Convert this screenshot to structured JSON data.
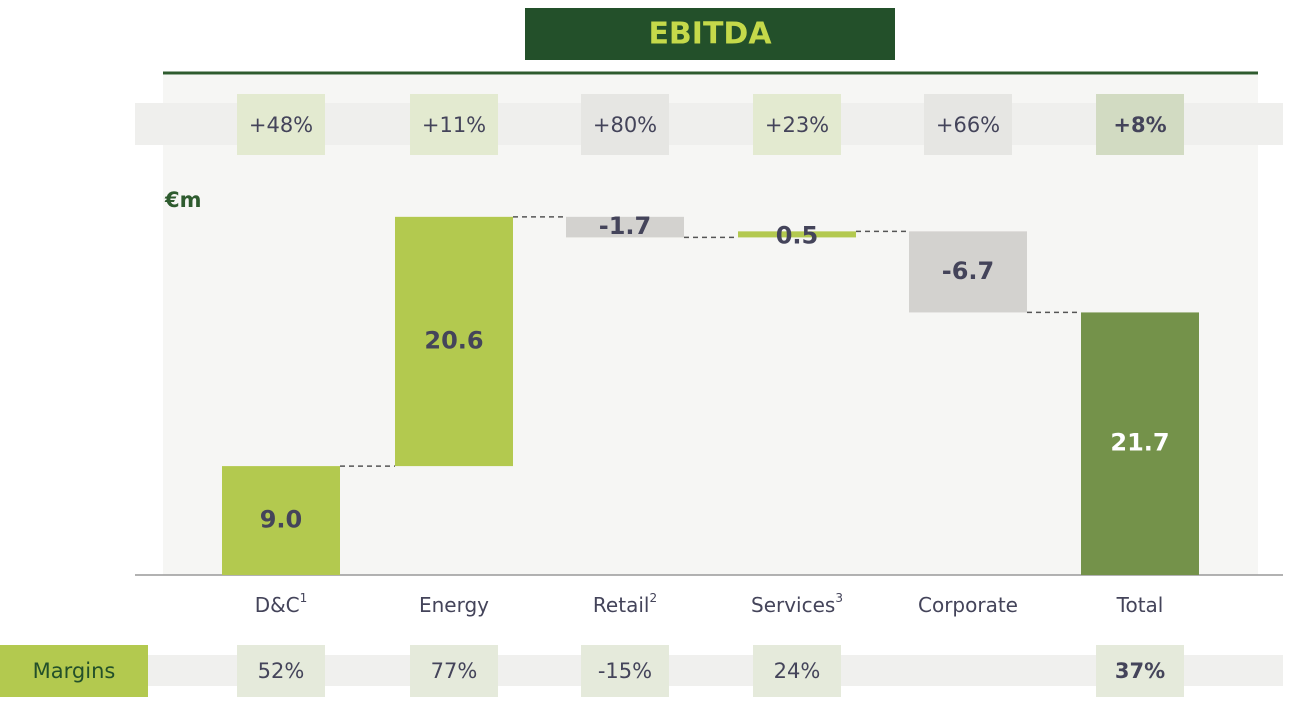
{
  "chart_data": {
    "type": "waterfall",
    "title": "EBITDA",
    "unit_label": "€m",
    "categories": [
      "D&C",
      "Energy",
      "Retail",
      "Services",
      "Corporate",
      "Total"
    ],
    "category_superscripts": [
      "1",
      null,
      "2",
      "3",
      null,
      null
    ],
    "measure": [
      "relative",
      "relative",
      "relative",
      "relative",
      "relative",
      "total"
    ],
    "values": [
      9.0,
      20.6,
      -1.7,
      0.5,
      -6.7,
      21.7
    ],
    "value_labels": [
      "9.0",
      "20.6",
      "-1.7",
      "0.5",
      "-6.7",
      "21.7"
    ],
    "colors": {
      "increase": "#b3c94f",
      "decrease": "#d3d2cf",
      "total": "#74924a"
    },
    "ylim": [
      0,
      30
    ],
    "growth": {
      "values": [
        48,
        11,
        80,
        23,
        66,
        8
      ],
      "labels": [
        "+48%",
        "+11%",
        "+80%",
        "+23%",
        "+66%",
        "+8%"
      ]
    },
    "margins": {
      "title": "Margins",
      "values": [
        52,
        77,
        -15,
        24,
        null,
        37
      ],
      "labels": [
        "52%",
        "77%",
        "-15%",
        "24%",
        null,
        "37%"
      ]
    }
  }
}
